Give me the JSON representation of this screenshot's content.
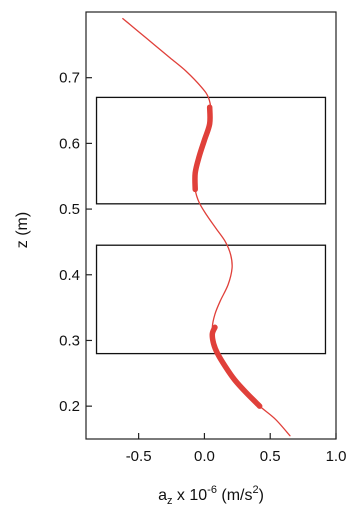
{
  "chart_data": {
    "type": "line",
    "xlabel": "a_z x 10^-6 (m/s^2)",
    "xlabel_parts": {
      "base": "a",
      "sub": "z",
      "mid": " x 10",
      "sup1": "-6",
      "unit_pre": " (m/s",
      "sup2": "2",
      "unit_post": ")"
    },
    "ylabel": "z (m)",
    "xlim": [
      -0.9,
      1.0
    ],
    "ylim": [
      0.15,
      0.8
    ],
    "xticks": [
      -0.5,
      0.0,
      0.5,
      1.0
    ],
    "xtick_labels": [
      "-0.5",
      "0.0",
      "0.5",
      "1.0"
    ],
    "yticks": [
      0.2,
      0.3,
      0.4,
      0.5,
      0.6,
      0.7
    ],
    "ytick_labels": [
      "0.2",
      "0.3",
      "0.4",
      "0.5",
      "0.6",
      "0.7"
    ],
    "series": [
      {
        "color": "#e0403a",
        "x": [
          -0.62,
          -0.5,
          -0.38,
          -0.26,
          -0.14,
          -0.02,
          0.03,
          0.05,
          0.04,
          0.0,
          -0.04,
          -0.07,
          -0.07,
          -0.04,
          0.02,
          0.09,
          0.16,
          0.2,
          0.21,
          0.18,
          0.12,
          0.08,
          0.06,
          0.07,
          0.1,
          0.16,
          0.23,
          0.32,
          0.42,
          0.54,
          0.65
        ],
        "y": [
          0.79,
          0.77,
          0.75,
          0.73,
          0.71,
          0.685,
          0.67,
          0.65,
          0.63,
          0.605,
          0.58,
          0.555,
          0.53,
          0.51,
          0.49,
          0.47,
          0.45,
          0.43,
          0.41,
          0.385,
          0.36,
          0.34,
          0.32,
          0.3,
          0.28,
          0.26,
          0.24,
          0.22,
          0.2,
          0.18,
          0.155
        ]
      }
    ],
    "highlight_segments": [
      {
        "x": [
          0.04,
          0.04,
          0.0,
          -0.04,
          -0.07,
          -0.07
        ],
        "y": [
          0.655,
          0.63,
          0.605,
          0.58,
          0.555,
          0.53
        ]
      },
      {
        "x": [
          0.08,
          0.06,
          0.07,
          0.1,
          0.16,
          0.23,
          0.32,
          0.42
        ],
        "y": [
          0.32,
          0.31,
          0.295,
          0.28,
          0.26,
          0.24,
          0.22,
          0.2
        ]
      }
    ],
    "boxes": [
      {
        "x": [
          -0.82,
          0.92
        ],
        "y": [
          0.508,
          0.67
        ]
      },
      {
        "x": [
          -0.82,
          0.92
        ],
        "y": [
          0.28,
          0.445
        ]
      }
    ],
    "grid": false,
    "legend": "none"
  }
}
